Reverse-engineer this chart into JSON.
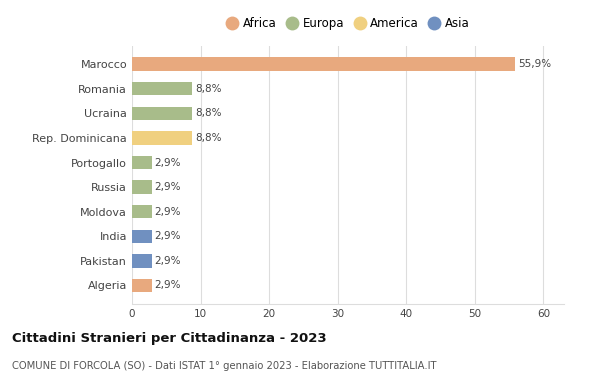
{
  "countries": [
    "Marocco",
    "Romania",
    "Ucraina",
    "Rep. Dominicana",
    "Portogallo",
    "Russia",
    "Moldova",
    "India",
    "Pakistan",
    "Algeria"
  ],
  "values": [
    55.9,
    8.8,
    8.8,
    8.8,
    2.9,
    2.9,
    2.9,
    2.9,
    2.9,
    2.9
  ],
  "labels": [
    "55,9%",
    "8,8%",
    "8,8%",
    "8,8%",
    "2,9%",
    "2,9%",
    "2,9%",
    "2,9%",
    "2,9%",
    "2,9%"
  ],
  "continents": [
    "Africa",
    "Europa",
    "Europa",
    "America",
    "Europa",
    "Europa",
    "Europa",
    "Asia",
    "Asia",
    "Africa"
  ],
  "colors": {
    "Africa": "#E8A97E",
    "Europa": "#A8BC8A",
    "America": "#F0D080",
    "Asia": "#7090C0"
  },
  "legend_order": [
    "Africa",
    "Europa",
    "America",
    "Asia"
  ],
  "title": "Cittadini Stranieri per Cittadinanza - 2023",
  "subtitle": "COMUNE DI FORCOLA (SO) - Dati ISTAT 1° gennaio 2023 - Elaborazione TUTTITALIA.IT",
  "xlim": [
    0,
    63
  ],
  "xticks": [
    0,
    10,
    20,
    30,
    40,
    50,
    60
  ],
  "bg_color": "#ffffff",
  "bar_height": 0.55,
  "grid_color": "#dddddd"
}
